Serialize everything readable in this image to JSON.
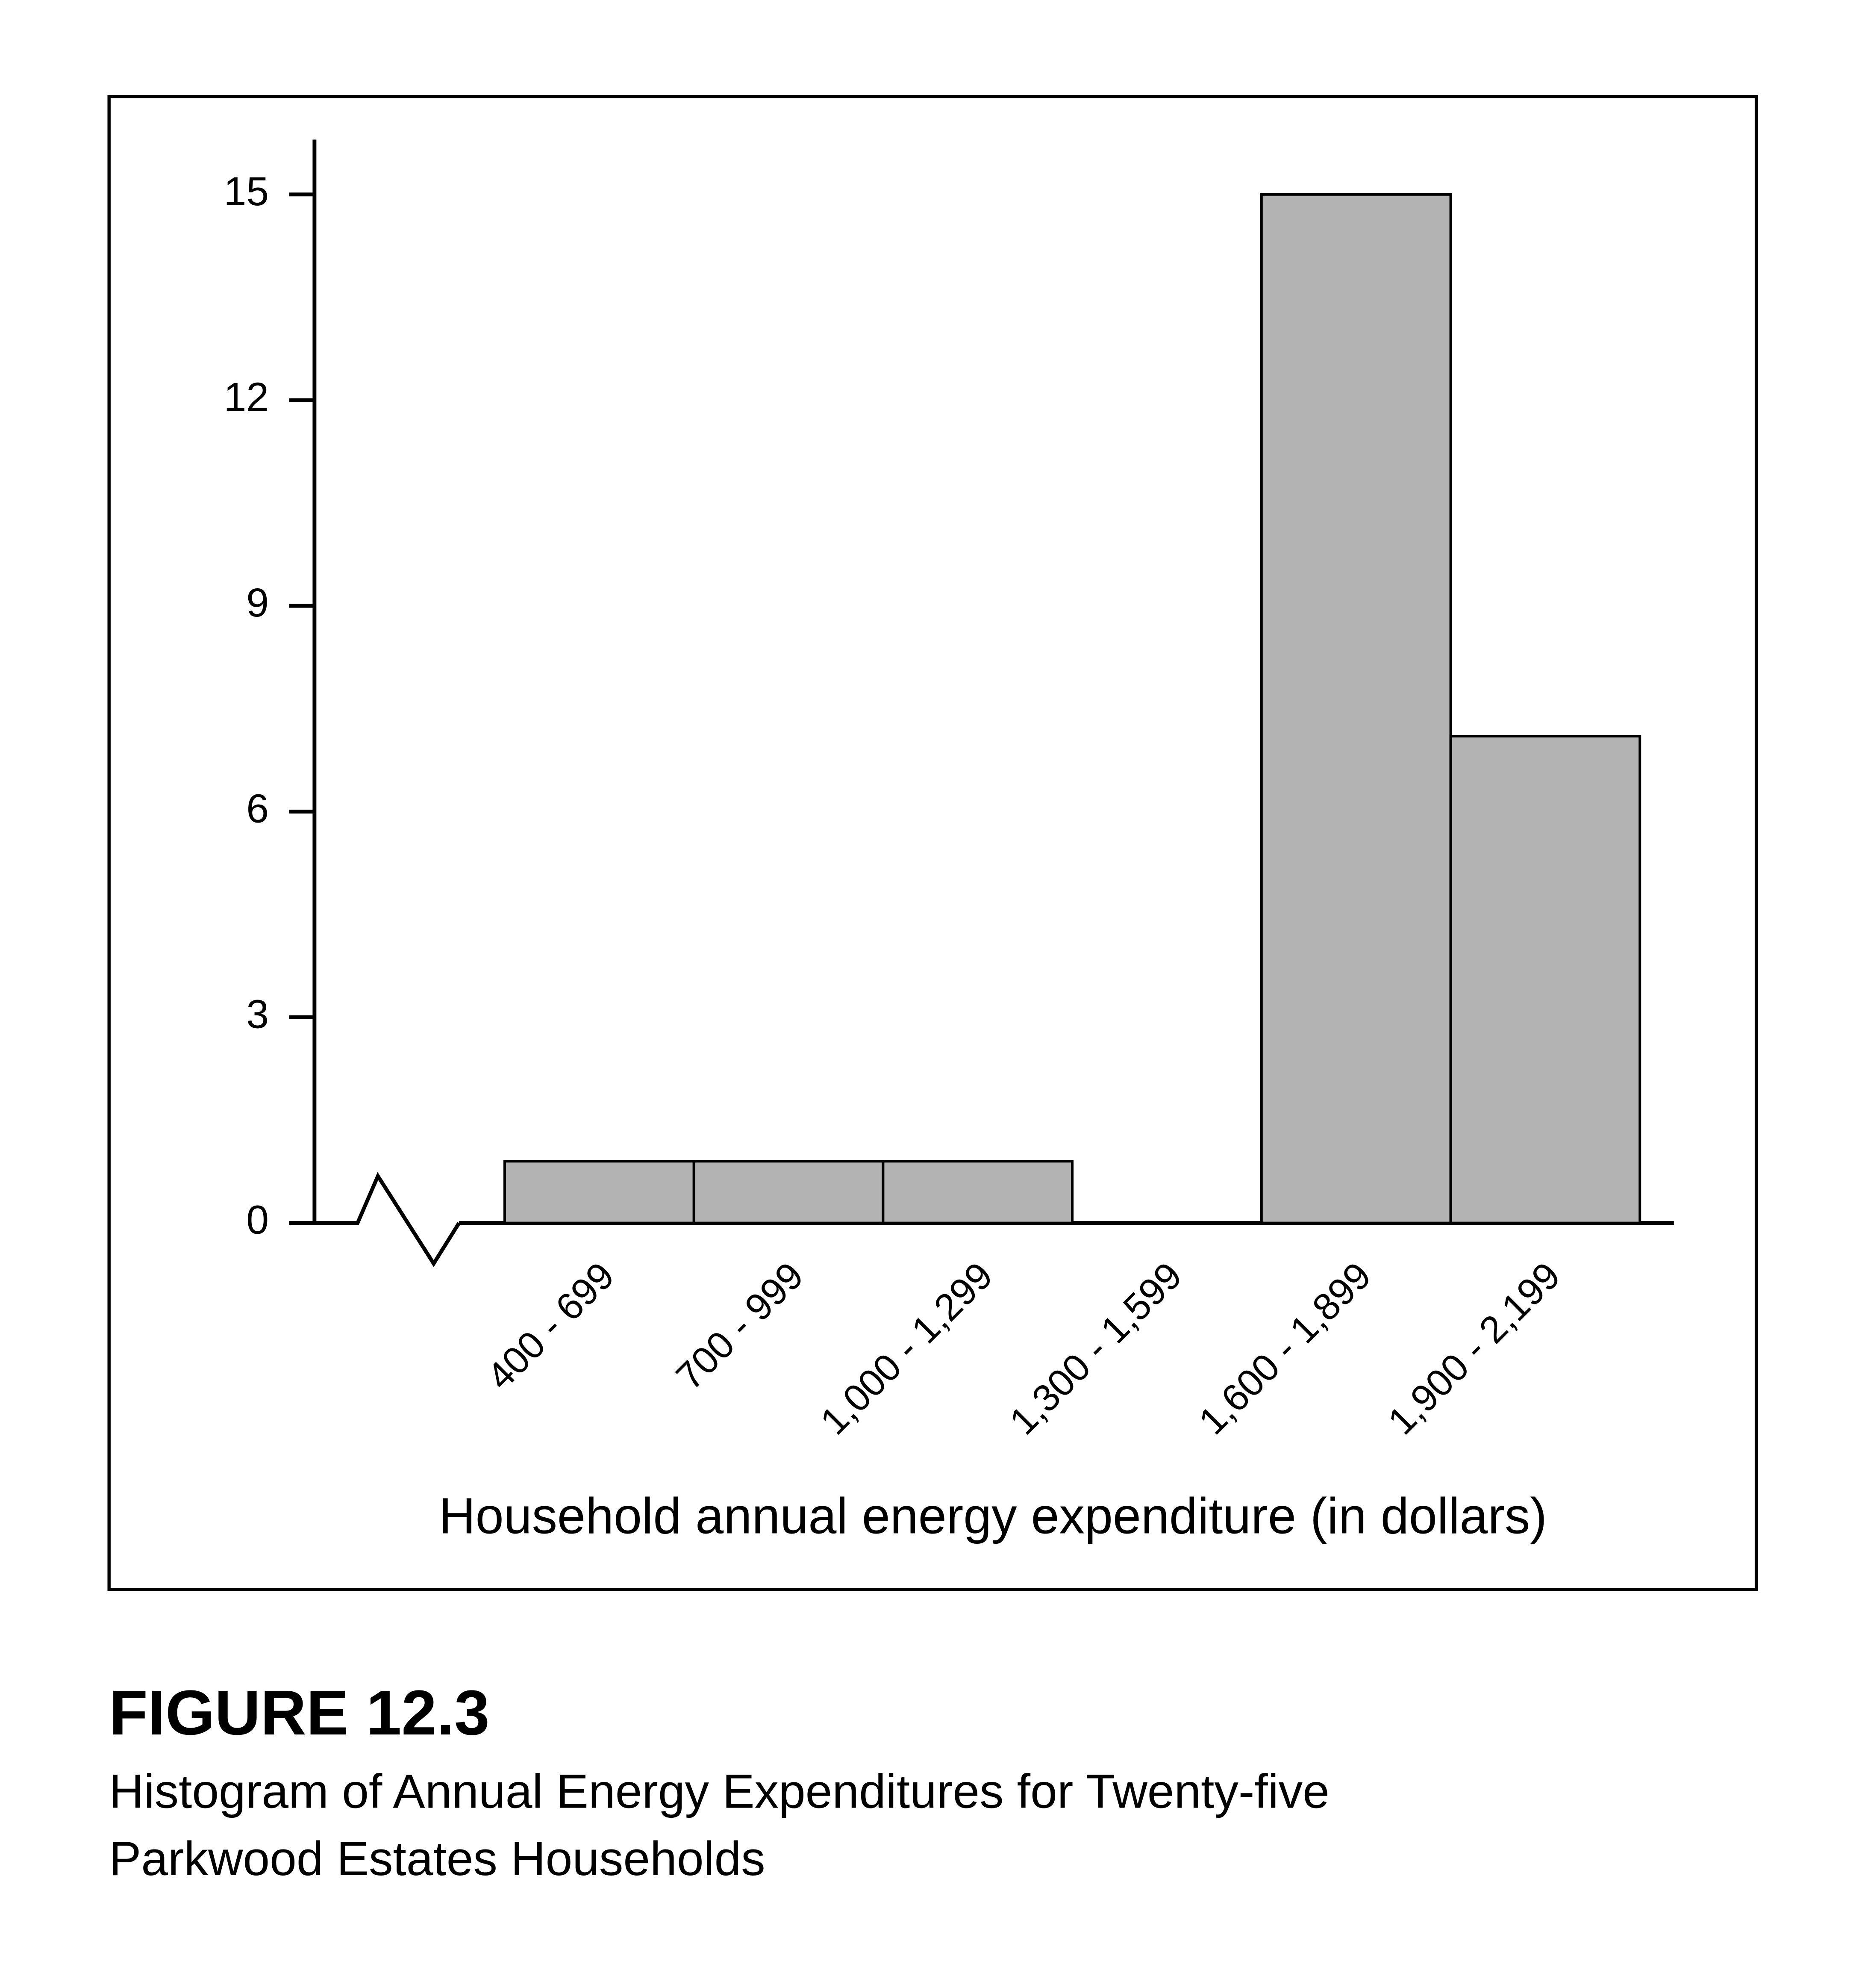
{
  "chart_data": {
    "type": "bar",
    "figure_label": "FIGURE 12.3",
    "caption": [
      "Histogram of Annual Energy Expenditures for Twenty-five",
      "Parkwood Estates Households"
    ],
    "x_label": "Household annual energy expenditure (in dollars)",
    "categories": [
      "400 - 699",
      "700 - 999",
      "1,000 - 1,299",
      "1,300 - 1,599",
      "1,600 - 1,899",
      "1,900 - 2,199"
    ],
    "values": [
      0.9,
      0.9,
      0.9,
      0,
      15,
      7.1
    ],
    "color": "#b3b3b3",
    "ylim": [
      0,
      15.8
    ],
    "yticks": [
      0,
      3,
      6,
      9,
      12,
      15
    ]
  }
}
